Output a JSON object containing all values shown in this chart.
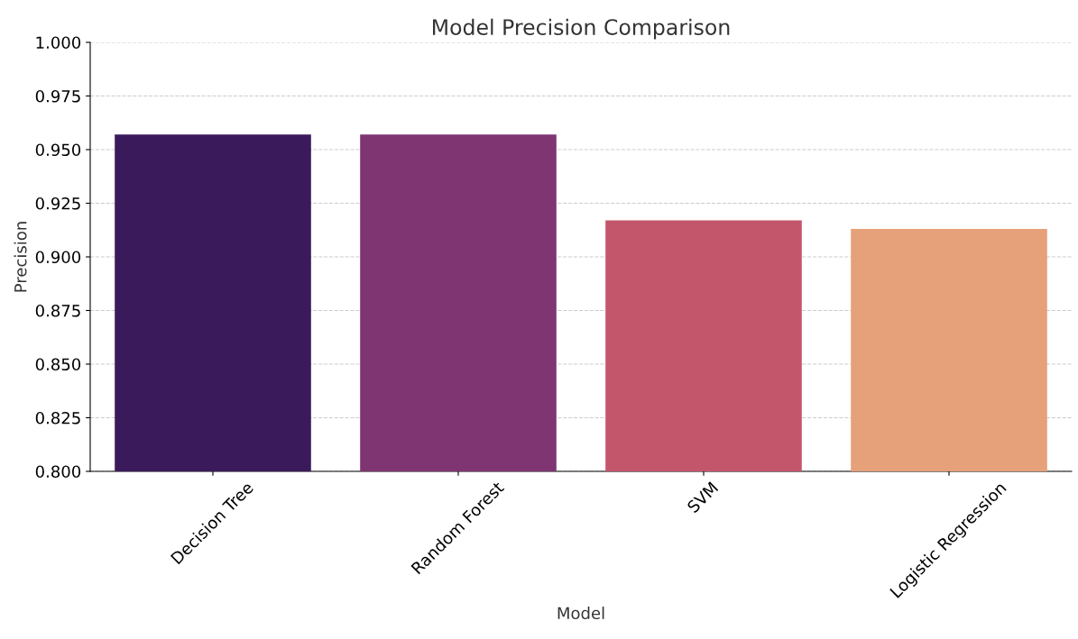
{
  "chart_data": {
    "type": "bar",
    "title": "Model Precision Comparison",
    "xlabel": "Model",
    "ylabel": "Precision",
    "categories": [
      "Decision Tree",
      "Random Forest",
      "SVM",
      "Logistic Regression"
    ],
    "values": [
      0.957,
      0.957,
      0.917,
      0.913
    ],
    "colors": [
      "#3b1a5c",
      "#7e3572",
      "#c4566c",
      "#e6a07a"
    ],
    "ylim": [
      0.8,
      1.0
    ],
    "yticks": [
      {
        "value": 0.8,
        "label": "0.800"
      },
      {
        "value": 0.825,
        "label": "0.825"
      },
      {
        "value": 0.85,
        "label": "0.850"
      },
      {
        "value": 0.875,
        "label": "0.875"
      },
      {
        "value": 0.9,
        "label": "0.900"
      },
      {
        "value": 0.925,
        "label": "0.925"
      },
      {
        "value": 0.95,
        "label": "0.950"
      },
      {
        "value": 0.975,
        "label": "0.975"
      },
      {
        "value": 1.0,
        "label": "1.000"
      }
    ],
    "grid": "y"
  }
}
